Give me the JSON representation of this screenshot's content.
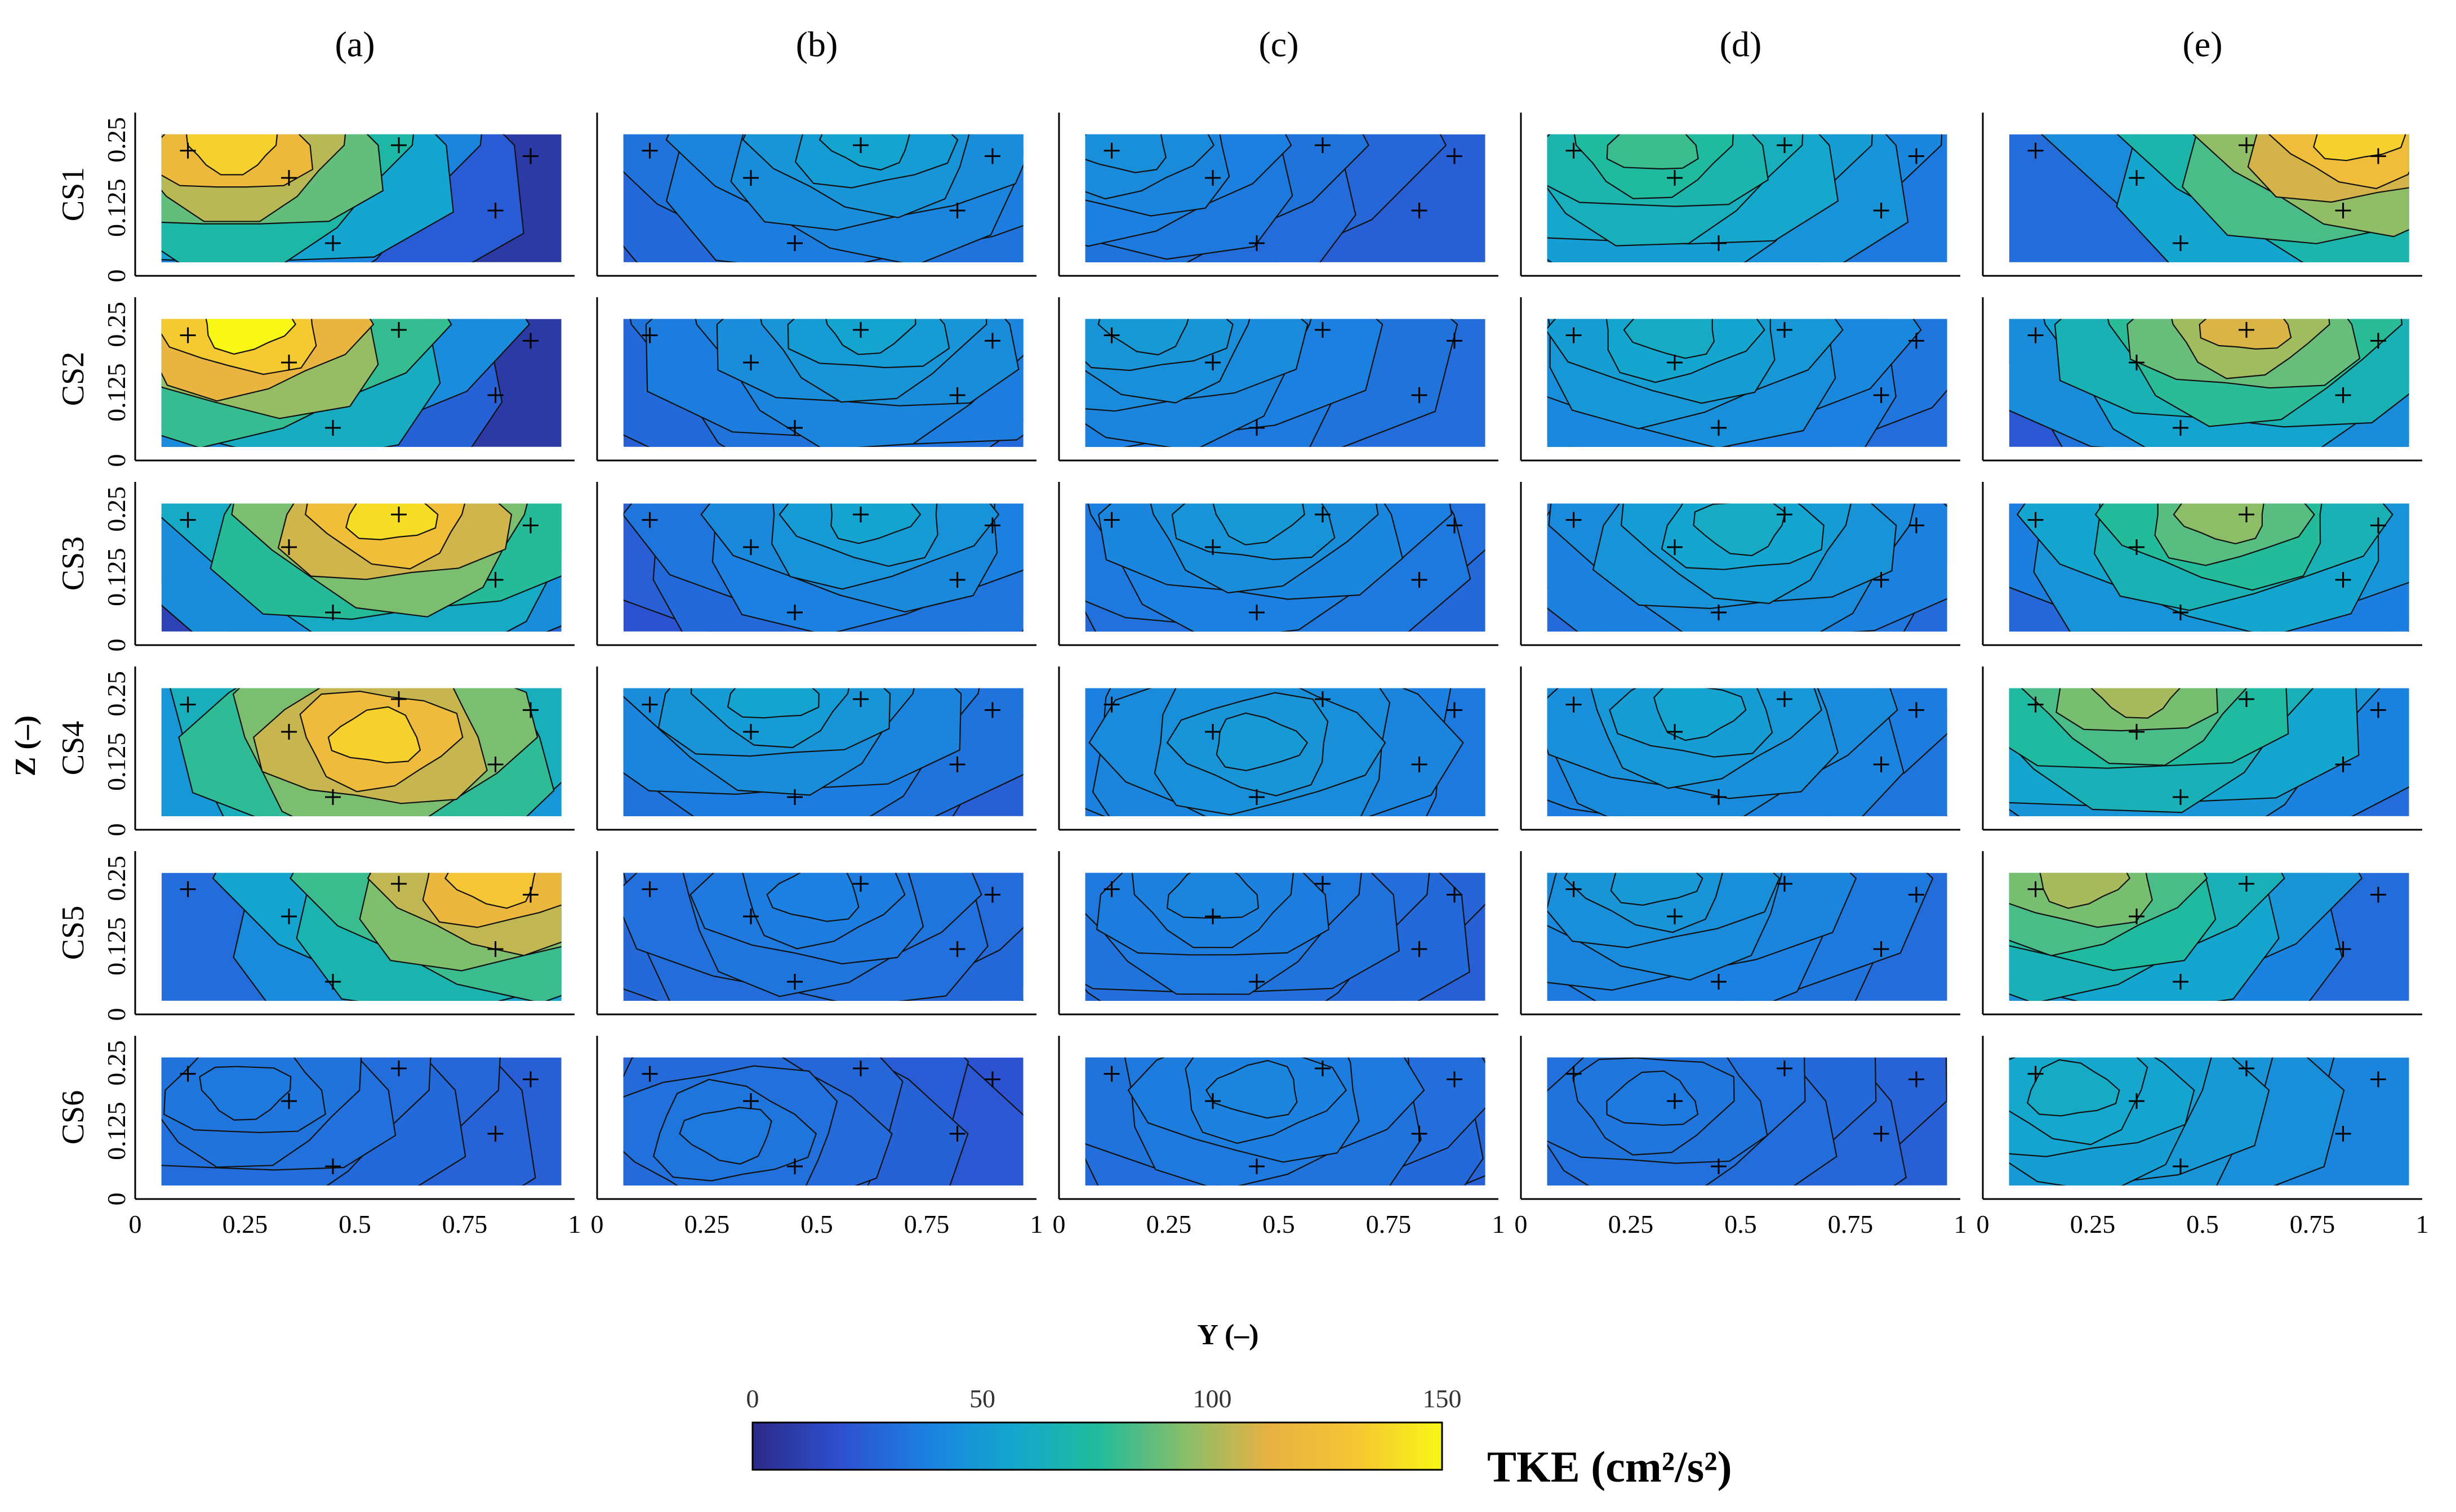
{
  "chart_data": {
    "type": "heatmap",
    "subtype": "contour grid (small multiples)",
    "columns": [
      "(a)",
      "(b)",
      "(c)",
      "(d)",
      "(e)"
    ],
    "rows": [
      "CS1",
      "CS2",
      "CS3",
      "CS4",
      "CS5",
      "CS6"
    ],
    "xlabel": "Y (–)",
    "ylabel": "Z (–)",
    "xlim": [
      0,
      1
    ],
    "ylim": [
      0,
      0.3
    ],
    "x_ticks": [
      "0",
      "0.25",
      "0.5",
      "0.75",
      "1"
    ],
    "y_ticks": [
      "0",
      "0.125",
      "0.25"
    ],
    "colorbar": {
      "label": "TKE (cm²/s²)",
      "range": [
        0,
        150
      ],
      "ticks": [
        "0",
        "50",
        "100",
        "150"
      ],
      "colormap": [
        "#2b2a86",
        "#2e4fd0",
        "#1c80e0",
        "#14a6cf",
        "#20bb9c",
        "#86be6a",
        "#e8b242",
        "#f5c633",
        "#f8f715"
      ]
    },
    "panels": [
      {
        "id": "a-CS1",
        "peak": {
          "y": 0.22,
          "z": 0.24,
          "tke": 135
        },
        "base_tke": 8
      },
      {
        "id": "b-CS1",
        "peak": {
          "y": 0.62,
          "z": 0.25,
          "tke": 55
        },
        "base_tke": 25
      },
      {
        "id": "c-CS1",
        "peak": {
          "y": 0.15,
          "z": 0.24,
          "tke": 45
        },
        "base_tke": 25
      },
      {
        "id": "d-CS1",
        "peak": {
          "y": 0.3,
          "z": 0.24,
          "tke": 80
        },
        "base_tke": 35
      },
      {
        "id": "e-CS1",
        "peak": {
          "y": 0.85,
          "z": 0.26,
          "tke": 135
        },
        "base_tke": 30
      },
      {
        "id": "a-CS2",
        "peak": {
          "y": 0.25,
          "z": 0.25,
          "tke": 150
        },
        "base_tke": 8
      },
      {
        "id": "b-CS2",
        "peak": {
          "y": 0.62,
          "z": 0.25,
          "tke": 55
        },
        "base_tke": 25
      },
      {
        "id": "c-CS2",
        "peak": {
          "y": 0.2,
          "z": 0.25,
          "tke": 50
        },
        "base_tke": 30
      },
      {
        "id": "d-CS2",
        "peak": {
          "y": 0.35,
          "z": 0.24,
          "tke": 60
        },
        "base_tke": 30
      },
      {
        "id": "e-CS2",
        "peak": {
          "y": 0.6,
          "z": 0.25,
          "tke": 110
        },
        "base_tke": 22
      },
      {
        "id": "a-CS3",
        "peak": {
          "y": 0.58,
          "z": 0.24,
          "tke": 140
        },
        "base_tke": 12
      },
      {
        "id": "b-CS3",
        "peak": {
          "y": 0.62,
          "z": 0.24,
          "tke": 55
        },
        "base_tke": 20
      },
      {
        "id": "c-CS3",
        "peak": {
          "y": 0.45,
          "z": 0.24,
          "tke": 50
        },
        "base_tke": 25
      },
      {
        "id": "d-CS3",
        "peak": {
          "y": 0.5,
          "z": 0.22,
          "tke": 60
        },
        "base_tke": 25
      },
      {
        "id": "e-CS3",
        "peak": {
          "y": 0.55,
          "z": 0.24,
          "tke": 95
        },
        "base_tke": 18
      },
      {
        "id": "a-CS4",
        "peak": {
          "y": 0.55,
          "z": 0.17,
          "tke": 135
        },
        "base_tke": 20
      },
      {
        "id": "b-CS4",
        "peak": {
          "y": 0.4,
          "z": 0.25,
          "tke": 55
        },
        "base_tke": 25
      },
      {
        "id": "c-CS4",
        "peak": {
          "y": 0.45,
          "z": 0.16,
          "tke": 50
        },
        "base_tke": 30
      },
      {
        "id": "d-CS4",
        "peak": {
          "y": 0.4,
          "z": 0.22,
          "tke": 55
        },
        "base_tke": 30
      },
      {
        "id": "e-CS4",
        "peak": {
          "y": 0.35,
          "z": 0.26,
          "tke": 100
        },
        "base_tke": 30
      },
      {
        "id": "a-CS5",
        "peak": {
          "y": 0.82,
          "z": 0.25,
          "tke": 130
        },
        "base_tke": 30
      },
      {
        "id": "b-CS5",
        "peak": {
          "y": 0.5,
          "z": 0.22,
          "tke": 38
        },
        "base_tke": 25
      },
      {
        "id": "c-CS5",
        "peak": {
          "y": 0.35,
          "z": 0.22,
          "tke": 40
        },
        "base_tke": 25
      },
      {
        "id": "d-CS5",
        "peak": {
          "y": 0.3,
          "z": 0.25,
          "tke": 50
        },
        "base_tke": 30
      },
      {
        "id": "e-CS5",
        "peak": {
          "y": 0.22,
          "z": 0.25,
          "tke": 100
        },
        "base_tke": 30
      },
      {
        "id": "a-CS6",
        "peak": {
          "y": 0.25,
          "z": 0.2,
          "tke": 35
        },
        "base_tke": 25
      },
      {
        "id": "b-CS6",
        "peak": {
          "y": 0.3,
          "z": 0.12,
          "tke": 35
        },
        "base_tke": 20
      },
      {
        "id": "c-CS6",
        "peak": {
          "y": 0.45,
          "z": 0.2,
          "tke": 40
        },
        "base_tke": 25
      },
      {
        "id": "d-CS6",
        "peak": {
          "y": 0.3,
          "z": 0.18,
          "tke": 35
        },
        "base_tke": 25
      },
      {
        "id": "e-CS6",
        "peak": {
          "y": 0.2,
          "z": 0.2,
          "tke": 60
        },
        "base_tke": 40
      }
    ]
  }
}
